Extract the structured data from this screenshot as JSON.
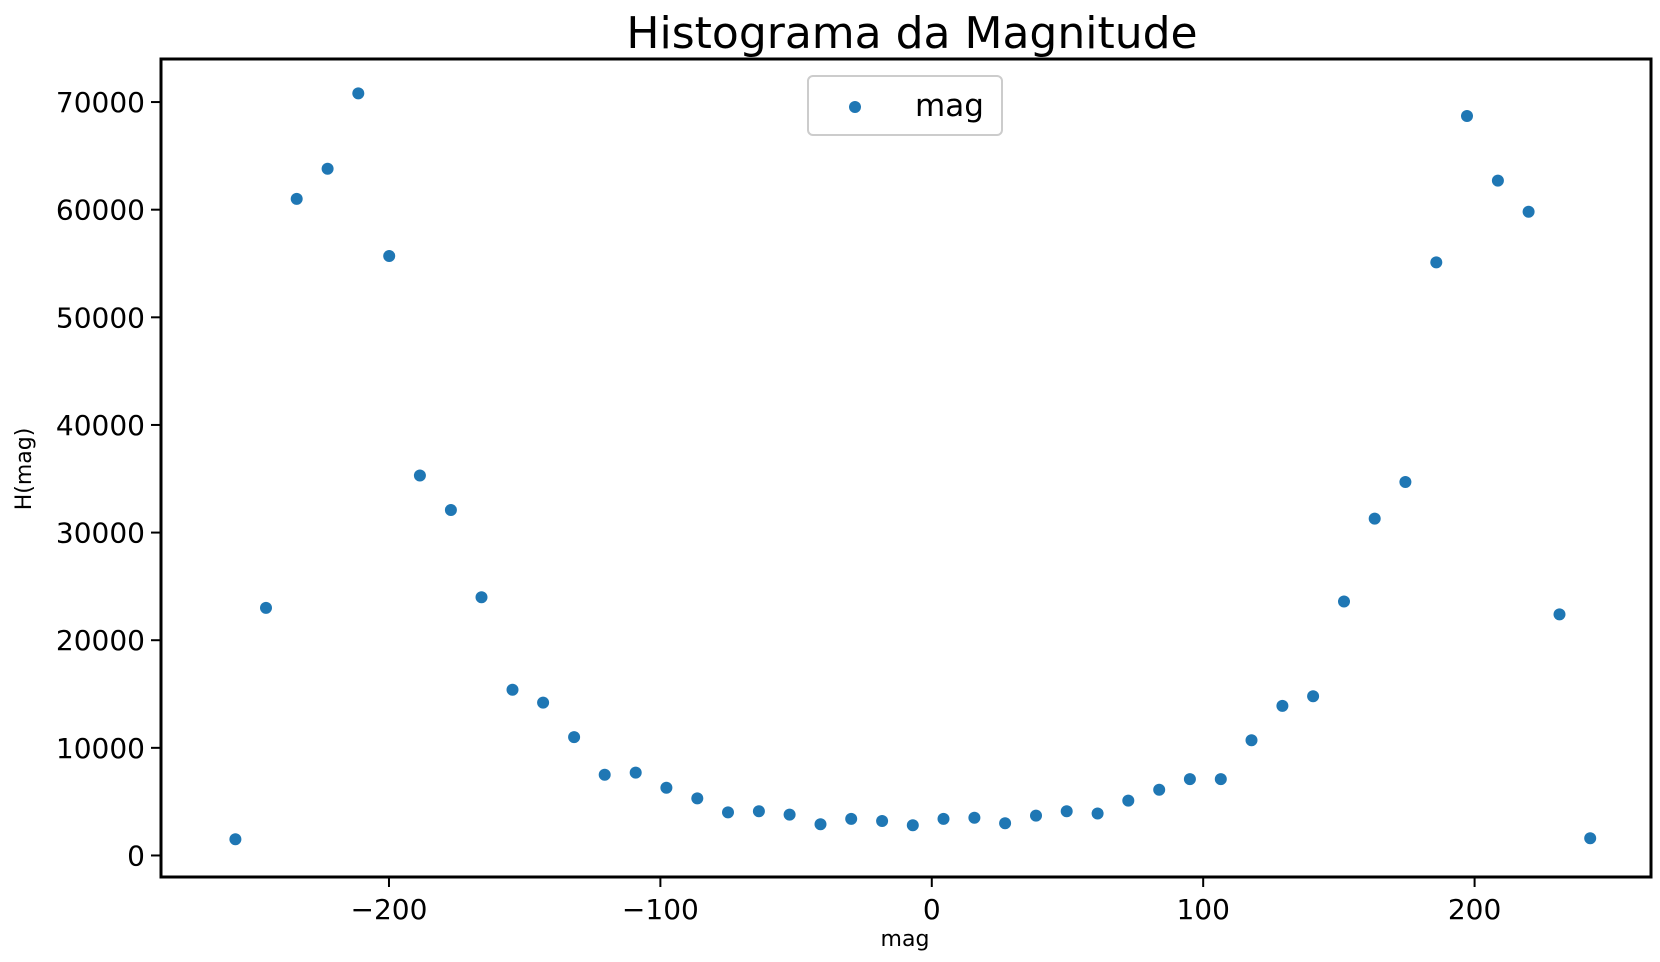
{
  "chart_data": {
    "type": "scatter",
    "title": "Histograma da Magnitude",
    "xlabel": "mag",
    "ylabel": "H(mag)",
    "xlim": [
      -284,
      265
    ],
    "ylim": [
      -2000,
      74000
    ],
    "xticks": [
      -200,
      -100,
      0,
      100,
      200
    ],
    "xtick_labels": [
      "−200",
      "−100",
      "0",
      "100",
      "200"
    ],
    "yticks": [
      0,
      10000,
      20000,
      30000,
      40000,
      50000,
      60000,
      70000
    ],
    "ytick_labels": [
      "0",
      "10000",
      "20000",
      "30000",
      "40000",
      "50000",
      "60000",
      "70000"
    ],
    "grid": false,
    "legend": {
      "position": "upper-center",
      "entries": [
        "mag"
      ]
    },
    "series": [
      {
        "name": "mag",
        "color": "#1f77b4",
        "x": [
          -256.6,
          -245.3,
          -234.0,
          -222.6,
          -211.3,
          -199.9,
          -188.6,
          -177.2,
          -165.9,
          -154.5,
          -143.2,
          -131.8,
          -120.5,
          -109.1,
          -97.8,
          -86.4,
          -75.1,
          -63.7,
          -52.4,
          -41.0,
          -29.7,
          -18.3,
          -7.0,
          4.3,
          15.7,
          27.0,
          38.4,
          49.7,
          61.1,
          72.4,
          83.8,
          95.1,
          106.5,
          117.8,
          129.2,
          140.5,
          151.9,
          163.2,
          174.5,
          185.9,
          197.2,
          208.6,
          219.9,
          231.3,
          242.6
        ],
        "y": [
          1500,
          23000,
          61000,
          63800,
          70800,
          55700,
          35300,
          32100,
          24000,
          15400,
          14200,
          11000,
          7500,
          7700,
          6300,
          5300,
          4000,
          4100,
          3800,
          2900,
          3400,
          3200,
          2800,
          3400,
          3500,
          3000,
          3700,
          4100,
          3900,
          5100,
          6100,
          7100,
          7100,
          10700,
          13900,
          14800,
          23600,
          31300,
          34700,
          55100,
          68700,
          62700,
          59800,
          22400,
          1600
        ]
      }
    ]
  }
}
